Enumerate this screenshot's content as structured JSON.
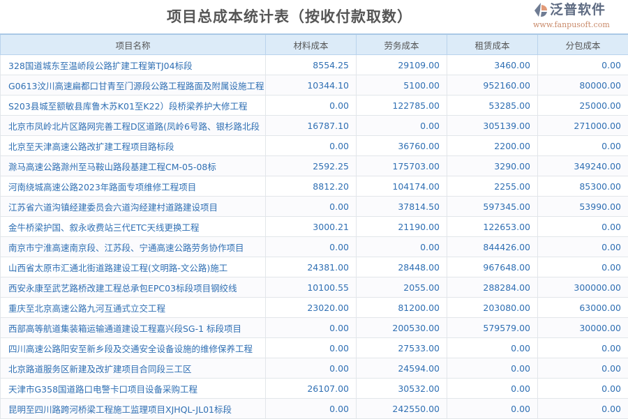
{
  "title": "项目总成本统计表（按收付款取数）",
  "columns": [
    "项目名称",
    "材料成本",
    "劳务成本",
    "租赁成本",
    "分包成本"
  ],
  "rows": [
    [
      "328国道城东至温峤段公路扩建工程第TJ04标段",
      "8554.25",
      "29109.00",
      "3460.00",
      "0.00"
    ],
    [
      "G0613汶川高速扁都口甘青至门源段公路工程路面及附属设施工程",
      "10344.10",
      "5100.00",
      "952160.00",
      "80000.00"
    ],
    [
      "S203县城至额敏县库鲁木苏K01至K22）段桥梁养护大修工程",
      "0.00",
      "122785.00",
      "53285.00",
      "25000.00"
    ],
    [
      "北京市凤岭北片区路网完善工程D区道路(凤岭6号路、银杉路北段",
      "16787.10",
      "0.00",
      "305139.00",
      "271000.00"
    ],
    [
      "北京至天津高速公路改扩建工程项目路标段",
      "0.00",
      "36760.00",
      "2200.00",
      "0.00"
    ],
    [
      "滁马高速公路滁州至马鞍山路段基建工程CM-05-08标",
      "2592.25",
      "175703.00",
      "3290.00",
      "349240.00"
    ],
    [
      "河南绕城高速公路2023年路面专项维修工程项目",
      "8812.20",
      "104174.00",
      "2255.00",
      "85300.00"
    ],
    [
      "江苏省六道沟镇经建委员会六道沟经建村道路建设项目",
      "0.00",
      "37814.50",
      "597345.00",
      "53990.00"
    ],
    [
      "金牛桥梁护国、叙永收费站三代ETC天线更换工程",
      "3000.21",
      "21190.00",
      "122653.00",
      "0.00"
    ],
    [
      "南京市宁淮高速南京段、江苏段、宁通高速公路劳务协作项目",
      "0.00",
      "0.00",
      "844426.00",
      "0.00"
    ],
    [
      "山西省太原市汇通北街道路建设工程(文明路-文公路)施工",
      "24381.00",
      "28448.00",
      "967648.00",
      "0.00"
    ],
    [
      "西安永康至武艺路桥改建工程总承包EPC03标段项目钢绞线",
      "10100.55",
      "2055.00",
      "288284.00",
      "300000.00"
    ],
    [
      "重庆至北京高速公路九河互通式立交工程",
      "23020.00",
      "81200.00",
      "203080.00",
      "63000.00"
    ],
    [
      "西部高等航道集装箱运输通道建设工程嘉兴段SG-1 标段项目",
      "0.00",
      "200530.00",
      "579579.00",
      "30000.00"
    ],
    [
      "四川高速公路阳安至新乡段及交通安全设备设施的维修保养工程",
      "0.00",
      "27533.00",
      "0.00",
      "0.00"
    ],
    [
      "北京路道服务区新建及改扩建项目合同段三工区",
      "0.00",
      "24594.00",
      "0.00",
      "0.00"
    ],
    [
      "天津市G358国道路口电警卡口项目设备采购工程",
      "26107.00",
      "30532.00",
      "0.00",
      "0.00"
    ],
    [
      "昆明至四川路跨河桥梁工程施工监理项目XJHQL-JL01标段",
      "0.00",
      "242550.00",
      "0.00",
      "0.00"
    ]
  ],
  "watermark": {
    "brand": "泛普软件",
    "url": "www.fanpusoft.com"
  },
  "colors": {
    "header_bg": "#dcebf8",
    "cell_text": "#2f6fb3",
    "title": "#555555"
  }
}
